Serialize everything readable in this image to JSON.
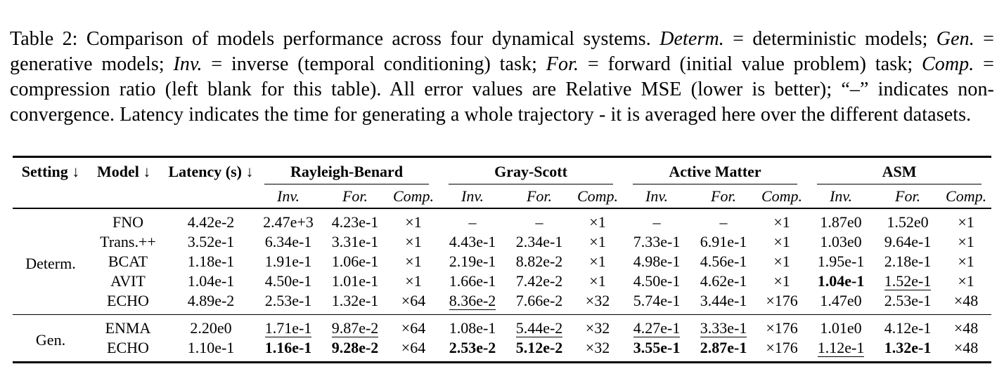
{
  "caption": {
    "segments": [
      {
        "text": "Table 2: Comparison of models performance across four dynamical systems. ",
        "italic": false
      },
      {
        "text": "Determ.",
        "italic": true
      },
      {
        "text": " = deterministic models; ",
        "italic": false
      },
      {
        "text": "Gen.",
        "italic": true
      },
      {
        "text": " = generative models; ",
        "italic": false
      },
      {
        "text": "Inv.",
        "italic": true
      },
      {
        "text": " = inverse (temporal conditioning) task; ",
        "italic": false
      },
      {
        "text": "For.",
        "italic": true
      },
      {
        "text": " = forward (initial value problem) task; ",
        "italic": false
      },
      {
        "text": "Comp.",
        "italic": true
      },
      {
        "text": " = compression ratio (left blank for this table). All error values are Relative MSE (lower is better); “–” indicates non-convergence. Latency indicates the time for generating a whole trajectory - it is averaged here over the different datasets.",
        "italic": false
      }
    ]
  },
  "table": {
    "header": {
      "setting": "Setting ↓",
      "model": "Model ↓",
      "latency": "Latency (s) ↓",
      "groups": [
        {
          "name": "Rayleigh-Benard",
          "sub": [
            "Inv.",
            "For.",
            "Comp."
          ]
        },
        {
          "name": "Gray-Scott",
          "sub": [
            "Inv.",
            "For.",
            "Comp."
          ]
        },
        {
          "name": "Active Matter",
          "sub": [
            "Inv.",
            "For.",
            "Comp."
          ]
        },
        {
          "name": "ASM",
          "sub": [
            "Inv.",
            "For.",
            "Comp."
          ]
        }
      ]
    },
    "sections": [
      {
        "setting": "Determ.",
        "rows": [
          {
            "model": "FNO",
            "latency": "4.42e-2",
            "cells": [
              {
                "t": "2.47e+3"
              },
              {
                "t": "4.23e-1"
              },
              {
                "t": "×1"
              },
              {
                "t": "–"
              },
              {
                "t": "–"
              },
              {
                "t": "×1"
              },
              {
                "t": "–"
              },
              {
                "t": "–"
              },
              {
                "t": "×1"
              },
              {
                "t": "1.87e0"
              },
              {
                "t": "1.52e0"
              },
              {
                "t": "×1"
              }
            ]
          },
          {
            "model": "Trans.++",
            "latency": "3.52e-1",
            "cells": [
              {
                "t": "6.34e-1"
              },
              {
                "t": "3.31e-1"
              },
              {
                "t": "×1"
              },
              {
                "t": "4.43e-1"
              },
              {
                "t": "2.34e-1"
              },
              {
                "t": "×1"
              },
              {
                "t": "7.33e-1"
              },
              {
                "t": "6.91e-1"
              },
              {
                "t": "×1"
              },
              {
                "t": "1.03e0"
              },
              {
                "t": "9.64e-1"
              },
              {
                "t": "×1"
              }
            ]
          },
          {
            "model": "BCAT",
            "latency": "1.18e-1",
            "cells": [
              {
                "t": "1.91e-1"
              },
              {
                "t": "1.06e-1"
              },
              {
                "t": "×1"
              },
              {
                "t": "2.19e-1"
              },
              {
                "t": "8.82e-2"
              },
              {
                "t": "×1"
              },
              {
                "t": "4.98e-1"
              },
              {
                "t": "4.56e-1"
              },
              {
                "t": "×1"
              },
              {
                "t": "1.95e-1"
              },
              {
                "t": "2.18e-1"
              },
              {
                "t": "×1"
              }
            ]
          },
          {
            "model": "AVIT",
            "latency": "1.04e-1",
            "cells": [
              {
                "t": "4.50e-1"
              },
              {
                "t": "1.01e-1"
              },
              {
                "t": "×1"
              },
              {
                "t": "1.66e-1"
              },
              {
                "t": "7.42e-2"
              },
              {
                "t": "×1"
              },
              {
                "t": "4.50e-1"
              },
              {
                "t": "4.62e-1"
              },
              {
                "t": "×1"
              },
              {
                "t": "1.04e-1",
                "b": true
              },
              {
                "t": "1.52e-1",
                "u": true
              },
              {
                "t": "×1"
              }
            ]
          },
          {
            "model": "ECHO",
            "latency": "4.89e-2",
            "cells": [
              {
                "t": "2.53e-1"
              },
              {
                "t": "1.32e-1"
              },
              {
                "t": "×64"
              },
              {
                "t": "8.36e-2",
                "u": true
              },
              {
                "t": "7.66e-2"
              },
              {
                "t": "×32"
              },
              {
                "t": "5.74e-1"
              },
              {
                "t": "3.44e-1"
              },
              {
                "t": "×176"
              },
              {
                "t": "1.47e0"
              },
              {
                "t": "2.53e-1"
              },
              {
                "t": "×48"
              }
            ]
          }
        ]
      },
      {
        "setting": "Gen.",
        "rows": [
          {
            "model": "ENMA",
            "latency": "2.20e0",
            "cells": [
              {
                "t": "1.71e-1",
                "u": true
              },
              {
                "t": "9.87e-2",
                "u": true
              },
              {
                "t": "×64"
              },
              {
                "t": "1.08e-1"
              },
              {
                "t": "5.44e-2",
                "u": true
              },
              {
                "t": "×32"
              },
              {
                "t": "4.27e-1",
                "u": true
              },
              {
                "t": "3.33e-1",
                "u": true
              },
              {
                "t": "×176"
              },
              {
                "t": "1.01e0"
              },
              {
                "t": "4.12e-1"
              },
              {
                "t": "×48"
              }
            ]
          },
          {
            "model": "ECHO",
            "latency": "1.10e-1",
            "cells": [
              {
                "t": "1.16e-1",
                "b": true
              },
              {
                "t": "9.28e-2",
                "b": true
              },
              {
                "t": "×64"
              },
              {
                "t": "2.53e-2",
                "b": true
              },
              {
                "t": "5.12e-2",
                "b": true
              },
              {
                "t": "×32"
              },
              {
                "t": "3.55e-1",
                "b": true
              },
              {
                "t": "2.87e-1",
                "b": true
              },
              {
                "t": "×176"
              },
              {
                "t": "1.12e-1",
                "u": true
              },
              {
                "t": "1.32e-1",
                "b": true
              },
              {
                "t": "×48"
              }
            ]
          }
        ]
      }
    ]
  }
}
